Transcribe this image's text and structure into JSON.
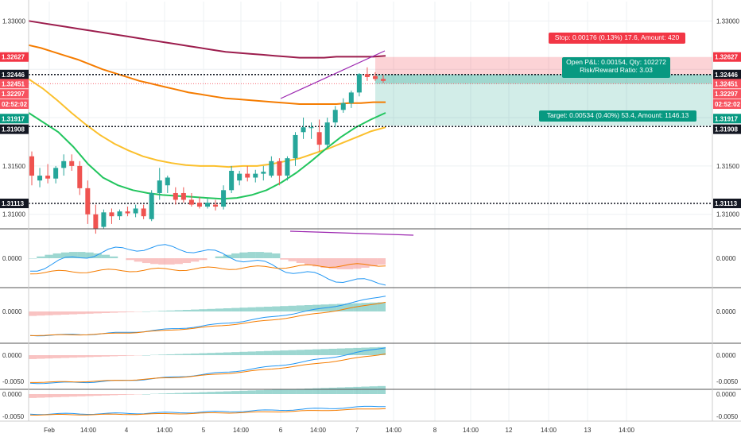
{
  "chart_data": {
    "type": "candlestick",
    "symbol": "1.32451",
    "x_labels": [
      "Feb",
      "14:00",
      "4",
      "14:00",
      "5",
      "14:00",
      "6",
      "14:00",
      "7",
      "14:00",
      "8",
      "14:00",
      "12",
      "14:00",
      "13",
      "14:00"
    ],
    "price_ticks": [
      "1.33000",
      "1.31500",
      "1.31000"
    ],
    "price_ylim": [
      1.3085,
      1.332
    ],
    "right_labels": [
      {
        "text": "1.32627",
        "price": 1.32627,
        "color": "#f23645"
      },
      {
        "text": "1.32446",
        "price": 1.32446,
        "color": "#131722"
      },
      {
        "text": "1.32451",
        "price": 1.32351,
        "color": "#f7525f"
      },
      {
        "text": "1.32297",
        "price": 1.32245,
        "color": "#f7525f"
      },
      {
        "text": "02:52:02",
        "price": 1.3214,
        "color": "#f7525f"
      },
      {
        "text": "1.31917",
        "price": 1.3199,
        "color": "#089981"
      },
      {
        "text": "1.31908",
        "price": 1.3188,
        "color": "#131722"
      },
      {
        "text": "1.31113",
        "price": 1.31113,
        "color": "#131722"
      }
    ],
    "left_labels": [
      {
        "text": "1.32627",
        "price": 1.32627,
        "color": "#f23645"
      },
      {
        "text": "1.32446",
        "price": 1.32446,
        "color": "#131722"
      },
      {
        "text": "1.32451",
        "price": 1.32351,
        "color": "#f7525f"
      },
      {
        "text": "1.32297",
        "price": 1.32245,
        "color": "#f7525f"
      },
      {
        "text": "02:52:02",
        "price": 1.3214,
        "color": "#f7525f"
      },
      {
        "text": "1.31917",
        "price": 1.3199,
        "color": "#089981"
      },
      {
        "text": "1.31908",
        "price": 1.3188,
        "color": "#131722"
      },
      {
        "text": "1.31113",
        "price": 1.31113,
        "color": "#131722"
      }
    ],
    "horizontal_levels": [
      1.32446,
      1.31908,
      1.31113
    ],
    "last_price": 1.32451,
    "candles": [
      {
        "o": 1.316,
        "h": 1.3165,
        "l": 1.313,
        "c": 1.314
      },
      {
        "o": 1.3135,
        "h": 1.3148,
        "l": 1.3128,
        "c": 1.314
      },
      {
        "o": 1.314,
        "h": 1.3152,
        "l": 1.3132,
        "c": 1.3137
      },
      {
        "o": 1.3137,
        "h": 1.315,
        "l": 1.3132,
        "c": 1.3148
      },
      {
        "o": 1.3148,
        "h": 1.3162,
        "l": 1.314,
        "c": 1.3155
      },
      {
        "o": 1.3155,
        "h": 1.3162,
        "l": 1.3145,
        "c": 1.315
      },
      {
        "o": 1.315,
        "h": 1.3155,
        "l": 1.312,
        "c": 1.3127
      },
      {
        "o": 1.3127,
        "h": 1.3135,
        "l": 1.309,
        "c": 1.31
      },
      {
        "o": 1.31,
        "h": 1.311,
        "l": 1.308,
        "c": 1.3085
      },
      {
        "o": 1.3087,
        "h": 1.3105,
        "l": 1.3085,
        "c": 1.3102
      },
      {
        "o": 1.3102,
        "h": 1.3106,
        "l": 1.309,
        "c": 1.3098
      },
      {
        "o": 1.3098,
        "h": 1.3105,
        "l": 1.3094,
        "c": 1.3103
      },
      {
        "o": 1.3103,
        "h": 1.3108,
        "l": 1.3098,
        "c": 1.3101
      },
      {
        "o": 1.3101,
        "h": 1.311,
        "l": 1.3097,
        "c": 1.3106
      },
      {
        "o": 1.3106,
        "h": 1.311,
        "l": 1.3095,
        "c": 1.3098
      },
      {
        "o": 1.3095,
        "h": 1.3125,
        "l": 1.3093,
        "c": 1.3122
      },
      {
        "o": 1.3122,
        "h": 1.3148,
        "l": 1.3115,
        "c": 1.3135
      },
      {
        "o": 1.313,
        "h": 1.314,
        "l": 1.3122,
        "c": 1.3138
      },
      {
        "o": 1.3122,
        "h": 1.3128,
        "l": 1.311,
        "c": 1.3115
      },
      {
        "o": 1.3122,
        "h": 1.3128,
        "l": 1.3112,
        "c": 1.3115
      },
      {
        "o": 1.3115,
        "h": 1.3122,
        "l": 1.3108,
        "c": 1.311
      },
      {
        "o": 1.3112,
        "h": 1.3118,
        "l": 1.3106,
        "c": 1.3108
      },
      {
        "o": 1.3108,
        "h": 1.3116,
        "l": 1.3106,
        "c": 1.3112
      },
      {
        "o": 1.311,
        "h": 1.3115,
        "l": 1.3104,
        "c": 1.3108
      },
      {
        "o": 1.3108,
        "h": 1.313,
        "l": 1.3105,
        "c": 1.3125
      },
      {
        "o": 1.3125,
        "h": 1.315,
        "l": 1.3122,
        "c": 1.3145
      },
      {
        "o": 1.3135,
        "h": 1.3145,
        "l": 1.313,
        "c": 1.3142
      },
      {
        "o": 1.3142,
        "h": 1.315,
        "l": 1.3134,
        "c": 1.3138
      },
      {
        "o": 1.3138,
        "h": 1.3146,
        "l": 1.3133,
        "c": 1.3142
      },
      {
        "o": 1.3142,
        "h": 1.315,
        "l": 1.3135,
        "c": 1.3144
      },
      {
        "o": 1.314,
        "h": 1.316,
        "l": 1.3138,
        "c": 1.3155
      },
      {
        "o": 1.3155,
        "h": 1.3158,
        "l": 1.313,
        "c": 1.314
      },
      {
        "o": 1.314,
        "h": 1.316,
        "l": 1.3135,
        "c": 1.3158
      },
      {
        "o": 1.3158,
        "h": 1.3185,
        "l": 1.315,
        "c": 1.3182
      },
      {
        "o": 1.3185,
        "h": 1.32,
        "l": 1.3178,
        "c": 1.319
      },
      {
        "o": 1.319,
        "h": 1.3195,
        "l": 1.3178,
        "c": 1.319
      },
      {
        "o": 1.3185,
        "h": 1.3198,
        "l": 1.3165,
        "c": 1.3172
      },
      {
        "o": 1.3172,
        "h": 1.32,
        "l": 1.3168,
        "c": 1.3195
      },
      {
        "o": 1.3195,
        "h": 1.3212,
        "l": 1.319,
        "c": 1.3208
      },
      {
        "o": 1.3208,
        "h": 1.322,
        "l": 1.3205,
        "c": 1.3215
      },
      {
        "o": 1.3215,
        "h": 1.3228,
        "l": 1.321,
        "c": 1.3226
      },
      {
        "o": 1.3226,
        "h": 1.3246,
        "l": 1.3222,
        "c": 1.3245
      },
      {
        "o": 1.3245,
        "h": 1.3252,
        "l": 1.3238,
        "c": 1.3242
      },
      {
        "o": 1.3243,
        "h": 1.3247,
        "l": 1.3238,
        "c": 1.324
      },
      {
        "o": 1.324,
        "h": 1.3244,
        "l": 1.3236,
        "c": 1.3238
      }
    ],
    "ma_series": [
      {
        "color": "#9c1d4d",
        "values": [
          1.33,
          1.3298,
          1.3296,
          1.3294,
          1.3292,
          1.329,
          1.3288,
          1.3286,
          1.3284,
          1.3282,
          1.328,
          1.3278,
          1.3276,
          1.3274,
          1.3272,
          1.327,
          1.3268,
          1.3267,
          1.3266,
          1.3265,
          1.3264,
          1.3263,
          1.3262,
          1.3262,
          1.3262,
          1.3263,
          1.3263,
          1.3263,
          1.3263,
          1.3264
        ]
      },
      {
        "color": "#f57c00",
        "values": [
          1.3275,
          1.3272,
          1.3268,
          1.3264,
          1.326,
          1.3255,
          1.325,
          1.3246,
          1.3242,
          1.3238,
          1.3235,
          1.3232,
          1.3229,
          1.3226,
          1.3224,
          1.3222,
          1.322,
          1.3219,
          1.3218,
          1.3217,
          1.3216,
          1.3215,
          1.3214,
          1.3214,
          1.3214,
          1.3214,
          1.3215,
          1.3215,
          1.3216,
          1.3216
        ]
      },
      {
        "color": "#fbc02d",
        "values": [
          1.324,
          1.323,
          1.3218,
          1.3205,
          1.3193,
          1.3182,
          1.3173,
          1.3166,
          1.316,
          1.3156,
          1.3153,
          1.3151,
          1.315,
          1.315,
          1.3149,
          1.315,
          1.315,
          1.3152,
          1.3155,
          1.3158,
          1.3163,
          1.3168,
          1.3174,
          1.318,
          1.3186,
          1.319
        ]
      },
      {
        "color": "#22c55e",
        "values": [
          1.3205,
          1.3195,
          1.3185,
          1.317,
          1.3152,
          1.3138,
          1.313,
          1.3125,
          1.3122,
          1.312,
          1.3119,
          1.3118,
          1.3117,
          1.3116,
          1.3117,
          1.312,
          1.3125,
          1.3133,
          1.3143,
          1.3155,
          1.3168,
          1.318,
          1.319,
          1.3198,
          1.3205
        ]
      }
    ],
    "position": {
      "stop_label": "Stop: 0.00176 (0.13%) 17.6, Amount: 420",
      "pnl_label": "Open P&L: 0.00154, Qty: 102272",
      "rr_label": "Risk/Reward Ratio: 3.03",
      "target_label": "Target: 0.00534 (0.40%) 53.4, Amount: 1146.13",
      "stop_price": 1.32627,
      "entry_price": 1.32446,
      "target_price": 1.31917,
      "current_price": 1.32451
    },
    "panes": [
      {
        "zero_label": "0.0000"
      },
      {
        "zero_label": "0.0000"
      },
      {
        "zero_label": "0.0000",
        "min_label": "-0.0050"
      },
      {
        "zero_label": "0.0000",
        "min_label": "-0.0050"
      }
    ]
  }
}
